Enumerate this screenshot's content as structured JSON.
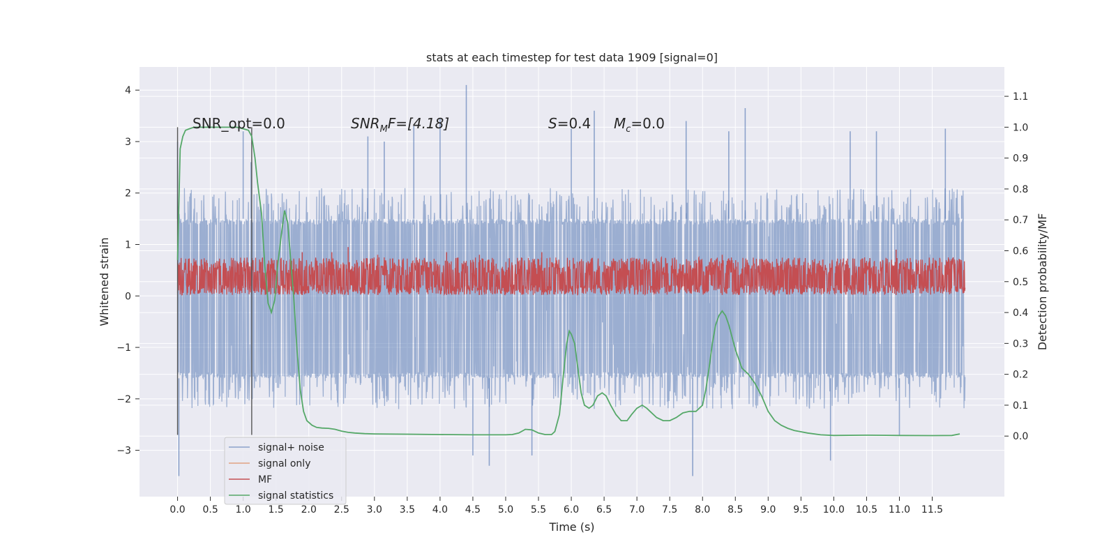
{
  "chart_data": {
    "type": "line",
    "title": "stats at each timestep for test data 1909 [signal=0]",
    "xlabel": "Time (s)",
    "ylabel": "Whitened strain",
    "y2label": "Detection probability/MF",
    "xlim": [
      -0.58,
      12.6
    ],
    "ylim": [
      -3.9,
      4.45
    ],
    "y2lim": [
      -0.196,
      1.195
    ],
    "x_ticks": [
      0.0,
      0.5,
      1.0,
      1.5,
      2.0,
      2.5,
      3.0,
      3.5,
      4.0,
      4.5,
      5.0,
      5.5,
      6.0,
      6.5,
      7.0,
      7.5,
      8.0,
      8.5,
      9.0,
      9.5,
      10.0,
      10.5,
      11.0,
      11.5
    ],
    "x_tick_labels": [
      "0.0",
      "0.5",
      "1.0",
      "1.5",
      "2.0",
      "2.5",
      "3.0",
      "3.5",
      "4.0",
      "4.5",
      "5.0",
      "5.5",
      "6.0",
      "6.5",
      "7.0",
      "7.5",
      "8.0",
      "8.5",
      "9.0",
      "9.5",
      "10.0",
      "10.5",
      "11.0",
      "11.5"
    ],
    "y_ticks": [
      -3,
      -2,
      -1,
      0,
      1,
      2,
      3,
      4
    ],
    "y_tick_labels": [
      "−3",
      "−2",
      "−1",
      "0",
      "1",
      "2",
      "3",
      "4"
    ],
    "y2_ticks": [
      0.0,
      0.1,
      0.2,
      0.3,
      0.4,
      0.5,
      0.6,
      0.7,
      0.8,
      0.9,
      1.0,
      1.1
    ],
    "y2_tick_labels": [
      "0.0",
      "0.1",
      "0.2",
      "0.3",
      "0.4",
      "0.5",
      "0.6",
      "0.7",
      "0.8",
      "0.9",
      "1.0",
      "1.1"
    ],
    "grid": true,
    "legend_position": "lower-left",
    "annotations": {
      "snr_opt": "SNR_opt=0.0",
      "snr_mf_base": "SNR",
      "snr_mf_sub": "M",
      "snr_mf_rest": "F=[4.18]",
      "s_var": "S",
      "s_rest": "=0.4",
      "mc_var": "M",
      "mc_sub": "c",
      "mc_rest": "=0.0"
    },
    "vertical_lines_x": [
      0.0,
      1.13
    ],
    "vertical_lines_y": [
      -2.7,
      3.28
    ],
    "series": [
      {
        "name": "signal+ noise",
        "color": "#4c72b0",
        "opacity": 0.5,
        "x_range": [
          0.0,
          12.0
        ],
        "band_y": [
          -2.2,
          2.1
        ],
        "core_y": [
          -1.6,
          1.5
        ],
        "peaks": [
          {
            "x": 0.0,
            "y": 3.0
          },
          {
            "x": 0.02,
            "y": -3.5
          },
          {
            "x": 1.0,
            "y": 3.2
          },
          {
            "x": 1.12,
            "y": 2.6
          },
          {
            "x": 2.9,
            "y": 3.1
          },
          {
            "x": 3.15,
            "y": 3.0
          },
          {
            "x": 3.6,
            "y": 3.3
          },
          {
            "x": 4.0,
            "y": 3.45
          },
          {
            "x": 4.4,
            "y": 4.1
          },
          {
            "x": 4.5,
            "y": -3.1
          },
          {
            "x": 4.75,
            "y": -3.3
          },
          {
            "x": 5.4,
            "y": -3.1
          },
          {
            "x": 6.0,
            "y": 3.25
          },
          {
            "x": 6.35,
            "y": 3.6
          },
          {
            "x": 7.75,
            "y": 3.4
          },
          {
            "x": 7.85,
            "y": -3.5
          },
          {
            "x": 8.4,
            "y": 3.2
          },
          {
            "x": 8.65,
            "y": 3.65
          },
          {
            "x": 9.95,
            "y": -3.2
          },
          {
            "x": 10.25,
            "y": 3.2
          },
          {
            "x": 10.65,
            "y": 3.2
          },
          {
            "x": 11.0,
            "y": -2.7
          },
          {
            "x": 11.7,
            "y": 3.25
          },
          {
            "x": 11.95,
            "y": 1.95
          }
        ]
      },
      {
        "name": "signal only",
        "color": "#dd8452",
        "opacity": 0.6,
        "x": [],
        "y": []
      },
      {
        "name": "MF",
        "color": "#c44e52",
        "x_range": [
          0.0,
          12.0
        ],
        "band_y": [
          0.02,
          0.75
        ],
        "peaks": [
          {
            "x": 1.9,
            "y": 0.85
          },
          {
            "x": 2.35,
            "y": 0.85
          },
          {
            "x": 2.6,
            "y": 0.95
          },
          {
            "x": 3.05,
            "y": 0.8
          },
          {
            "x": 4.1,
            "y": 0.85
          },
          {
            "x": 4.6,
            "y": 0.8
          },
          {
            "x": 5.55,
            "y": 0.85
          },
          {
            "x": 8.3,
            "y": 0.8
          },
          {
            "x": 10.95,
            "y": 0.9
          }
        ]
      },
      {
        "name": "signal statistics",
        "color": "#55a868",
        "axis": "right",
        "x": [
          0.0,
          0.04,
          0.08,
          0.12,
          0.18,
          0.25,
          0.35,
          0.5,
          0.7,
          0.9,
          1.0,
          1.08,
          1.13,
          1.18,
          1.22,
          1.28,
          1.33,
          1.38,
          1.43,
          1.48,
          1.53,
          1.58,
          1.63,
          1.68,
          1.72,
          1.77,
          1.82,
          1.87,
          1.92,
          1.97,
          2.05,
          2.12,
          2.2,
          2.3,
          2.4,
          2.5,
          2.6,
          2.7,
          2.85,
          3.0,
          3.5,
          4.0,
          4.5,
          5.0,
          5.1,
          5.2,
          5.3,
          5.4,
          5.5,
          5.6,
          5.7,
          5.75,
          5.82,
          5.88,
          5.93,
          5.97,
          6.0,
          6.05,
          6.1,
          6.15,
          6.2,
          6.27,
          6.33,
          6.4,
          6.47,
          6.53,
          6.6,
          6.68,
          6.76,
          6.85,
          6.92,
          7.0,
          7.08,
          7.15,
          7.2,
          7.3,
          7.4,
          7.5,
          7.6,
          7.7,
          7.8,
          7.9,
          8.0,
          8.05,
          8.1,
          8.15,
          8.2,
          8.25,
          8.3,
          8.35,
          8.4,
          8.45,
          8.5,
          8.6,
          8.7,
          8.8,
          8.9,
          9.0,
          9.1,
          9.2,
          9.3,
          9.4,
          9.6,
          9.8,
          10.0,
          10.5,
          11.0,
          11.5,
          11.8,
          11.92
        ],
        "y": [
          0.57,
          0.93,
          0.97,
          0.99,
          0.995,
          1.0,
          1.0,
          1.0,
          1.0,
          1.0,
          0.995,
          0.99,
          0.97,
          0.9,
          0.82,
          0.72,
          0.55,
          0.43,
          0.4,
          0.44,
          0.56,
          0.65,
          0.73,
          0.69,
          0.58,
          0.45,
          0.28,
          0.15,
          0.08,
          0.05,
          0.035,
          0.028,
          0.026,
          0.025,
          0.022,
          0.016,
          0.012,
          0.01,
          0.008,
          0.007,
          0.006,
          0.005,
          0.004,
          0.004,
          0.005,
          0.01,
          0.022,
          0.02,
          0.01,
          0.005,
          0.005,
          0.015,
          0.07,
          0.2,
          0.3,
          0.34,
          0.33,
          0.3,
          0.22,
          0.14,
          0.1,
          0.09,
          0.1,
          0.13,
          0.14,
          0.13,
          0.1,
          0.07,
          0.05,
          0.05,
          0.07,
          0.09,
          0.1,
          0.09,
          0.08,
          0.06,
          0.05,
          0.05,
          0.06,
          0.075,
          0.08,
          0.08,
          0.1,
          0.15,
          0.22,
          0.3,
          0.36,
          0.39,
          0.405,
          0.39,
          0.36,
          0.32,
          0.28,
          0.22,
          0.2,
          0.17,
          0.13,
          0.08,
          0.05,
          0.035,
          0.025,
          0.018,
          0.01,
          0.004,
          0.002,
          0.003,
          0.002,
          0.0015,
          0.002,
          0.007
        ]
      }
    ]
  }
}
